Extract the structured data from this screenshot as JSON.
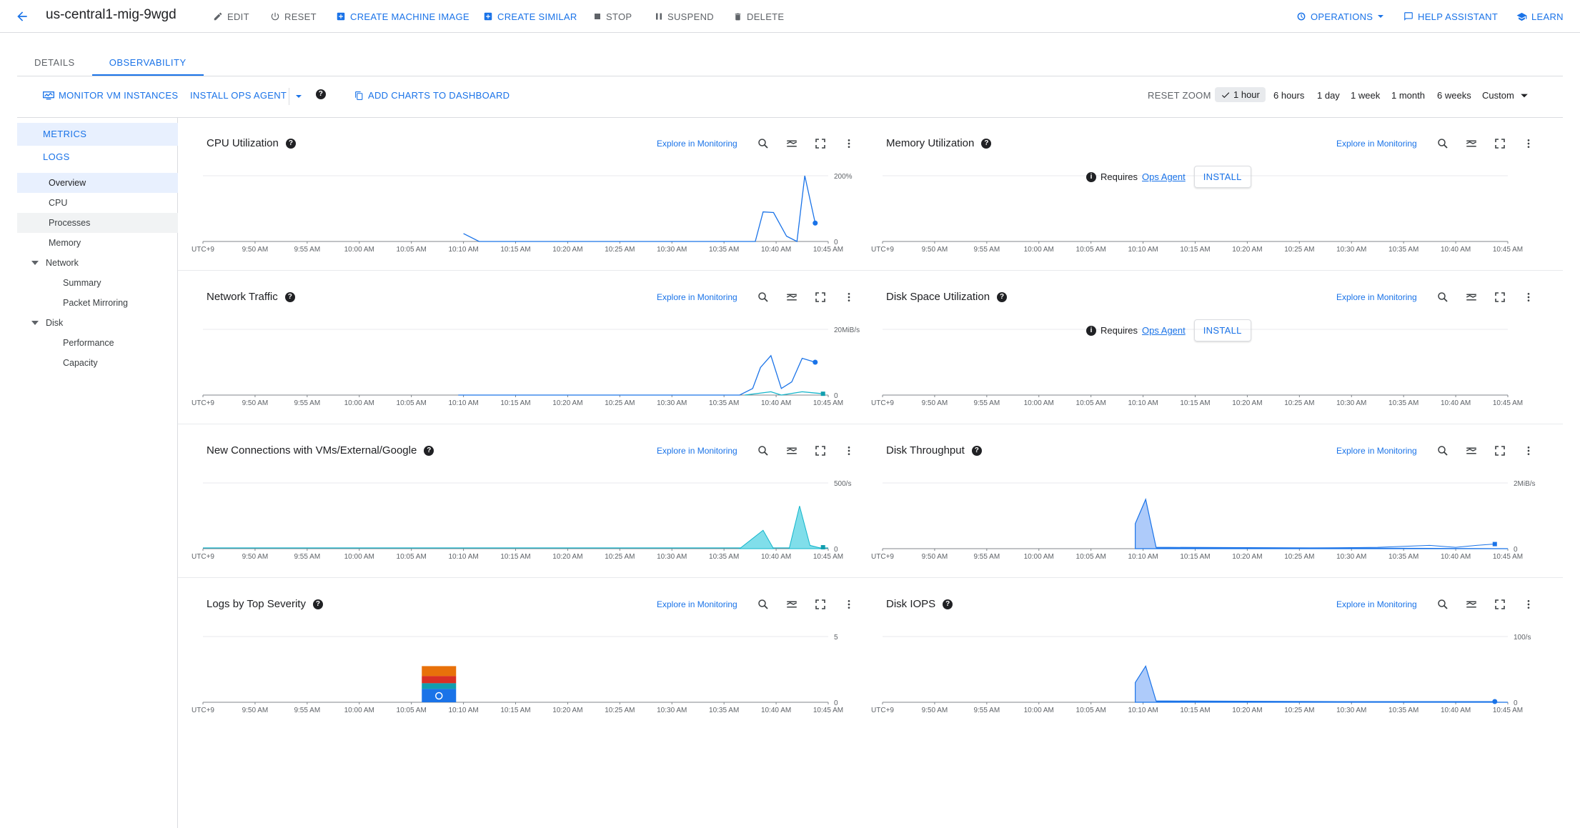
{
  "header": {
    "title": "us-central1-mig-9wgd",
    "actions": {
      "edit": "EDIT",
      "reset": "RESET",
      "create_machine_image": "CREATE MACHINE IMAGE",
      "create_similar": "CREATE SIMILAR",
      "stop": "STOP",
      "suspend": "SUSPEND",
      "delete": "DELETE"
    },
    "right": {
      "operations": "OPERATIONS",
      "help_assistant": "HELP ASSISTANT",
      "learn": "LEARN"
    }
  },
  "tabs": {
    "details": "DETAILS",
    "observability": "OBSERVABILITY"
  },
  "toolbar": {
    "monitor_vm": "MONITOR VM INSTANCES",
    "install_ops_agent": "INSTALL OPS AGENT",
    "add_charts": "ADD CHARTS TO DASHBOARD",
    "reset_zoom": "RESET ZOOM",
    "ranges": [
      "1 hour",
      "6 hours",
      "1 day",
      "1 week",
      "1 month",
      "6 weeks"
    ],
    "custom": "Custom"
  },
  "sidebar": {
    "metrics": "METRICS",
    "logs": "LOGS",
    "items": [
      "Overview",
      "CPU",
      "Processes",
      "Memory",
      "Network",
      "Summary",
      "Packet Mirroring",
      "Disk",
      "Performance",
      "Capacity"
    ]
  },
  "common": {
    "explore": "Explore in Monitoring",
    "requires": "Requires",
    "ops_agent": "Ops Agent",
    "install": "INSTALL",
    "x_ticks": [
      "UTC+9",
      "9:50 AM",
      "9:55 AM",
      "10:00 AM",
      "10:05 AM",
      "10:10 AM",
      "10:15 AM",
      "10:20 AM",
      "10:25 AM",
      "10:30 AM",
      "10:35 AM",
      "10:40 AM",
      "10:45 AM"
    ]
  },
  "panels": {
    "cpu": {
      "title": "CPU Utilization",
      "ymax": "200%",
      "ymin": "0"
    },
    "memory": {
      "title": "Memory Utilization"
    },
    "network": {
      "title": "Network Traffic",
      "ymax": "20MiB/s",
      "ymin": "0"
    },
    "disk_space": {
      "title": "Disk Space Utilization"
    },
    "connections": {
      "title": "New Connections with VMs/External/Google",
      "ymax": "500/s",
      "ymin": "0"
    },
    "disk_throughput": {
      "title": "Disk Throughput",
      "ymax": "2MiB/s",
      "ymin": "0"
    },
    "logs": {
      "title": "Logs by Top Severity",
      "ymax": "5",
      "ymin": "0"
    },
    "disk_iops": {
      "title": "Disk IOPS",
      "ymax": "100/s",
      "ymin": "0"
    }
  },
  "colors": {
    "accent": "#1a73e8",
    "teal": "#12b5cb",
    "severity": [
      "#e8710a",
      "#d93025",
      "#1a73e8"
    ]
  }
}
